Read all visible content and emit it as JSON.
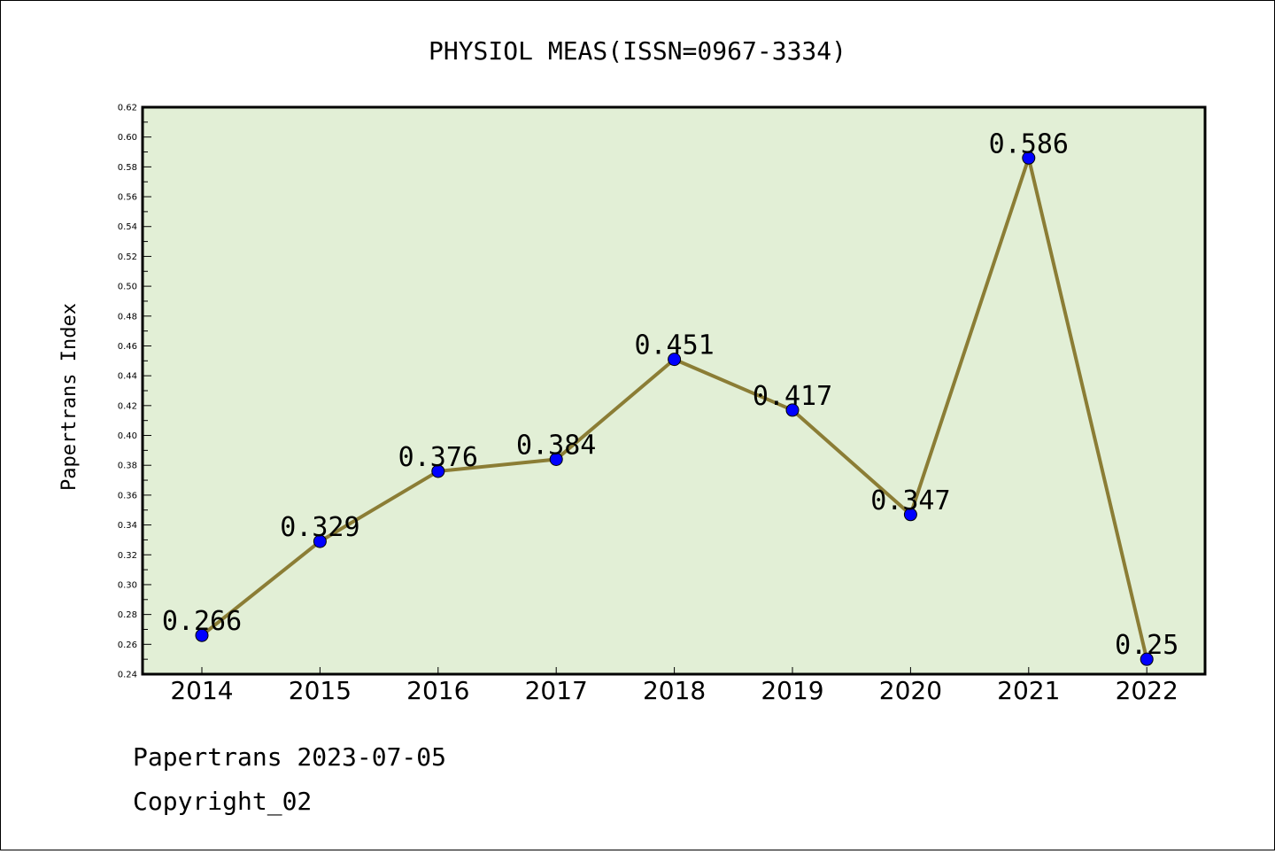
{
  "chart_data": {
    "type": "line",
    "title": "PHYSIOL MEAS(ISSN=0967-3334)",
    "ylabel": "Papertrans Index",
    "xlabel": "",
    "categories": [
      "2014",
      "2015",
      "2016",
      "2017",
      "2018",
      "2019",
      "2020",
      "2021",
      "2022"
    ],
    "values": [
      0.266,
      0.329,
      0.376,
      0.384,
      0.451,
      0.417,
      0.347,
      0.586,
      0.25
    ],
    "data_labels": [
      "0.266",
      "0.329",
      "0.376",
      "0.384",
      "0.451",
      "0.417",
      "0.347",
      "0.586",
      "0.25"
    ],
    "ylim": [
      0.24,
      0.62
    ],
    "yticks": [
      "0.24",
      "0.26",
      "0.28",
      "0.30",
      "0.32",
      "0.34",
      "0.36",
      "0.38",
      "0.40",
      "0.42",
      "0.44",
      "0.46",
      "0.48",
      "0.50",
      "0.52",
      "0.54",
      "0.56",
      "0.58",
      "0.60",
      "0.62"
    ],
    "grid": false,
    "legend": "none",
    "colors": {
      "plot_background": "#e2efd6",
      "line": "#8b7d35",
      "marker": "#0000ff"
    }
  },
  "footer": {
    "line1": "Papertrans 2023-07-05",
    "line2": "Copyright_02"
  }
}
